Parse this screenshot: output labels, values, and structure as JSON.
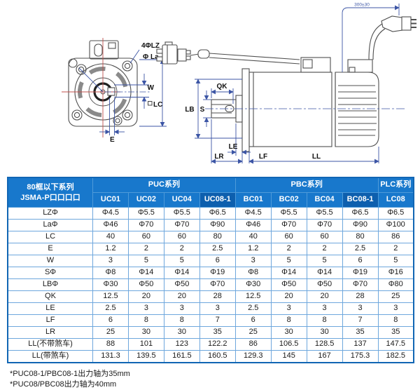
{
  "drawing": {
    "front_view": {
      "bolt_hole_label": "4ΦLZ",
      "pilot_dia_label": "Φ La",
      "key_width_label": "W",
      "frame_label": "LC",
      "key_offset_label": "E"
    },
    "side_view": {
      "key_length_label": "QK",
      "boss_dia_label": "LB",
      "shaft_dia_label": "S",
      "le_label": "LE",
      "lr_label": "LR",
      "lf_label": "LF",
      "ll_label": "LL",
      "cable_length_label": "300±30"
    }
  },
  "table": {
    "corner_header_line1": "80框以下系列",
    "corner_header_line2": "JSMA-P口口口口",
    "groups": [
      {
        "label": "PUC系列",
        "span": 4
      },
      {
        "label": "PBC系列",
        "span": 4
      },
      {
        "label": "PLC系列",
        "span": 1
      }
    ],
    "models": [
      "UC01",
      "UC02",
      "UC04",
      "UC08-1",
      "BC01",
      "BC02",
      "BC04",
      "BC08-1",
      "LC08"
    ],
    "highlight_models": [
      "UC08-1",
      "BC08-1"
    ],
    "rows": [
      {
        "label": "LZΦ",
        "values": [
          "Φ4.5",
          "Φ5.5",
          "Φ5.5",
          "Φ6.5",
          "Φ4.5",
          "Φ5.5",
          "Φ5.5",
          "Φ6.5",
          "Φ6.5"
        ]
      },
      {
        "label": "LaΦ",
        "values": [
          "Φ46",
          "Φ70",
          "Φ70",
          "Φ90",
          "Φ46",
          "Φ70",
          "Φ70",
          "Φ90",
          "Φ100"
        ]
      },
      {
        "label": "LC",
        "values": [
          "40",
          "60",
          "60",
          "80",
          "40",
          "60",
          "60",
          "80",
          "86"
        ]
      },
      {
        "label": "E",
        "values": [
          "1.2",
          "2",
          "2",
          "2.5",
          "1.2",
          "2",
          "2",
          "2.5",
          "2"
        ]
      },
      {
        "label": "W",
        "values": [
          "3",
          "5",
          "5",
          "6",
          "3",
          "5",
          "5",
          "6",
          "5"
        ]
      },
      {
        "label": "SΦ",
        "values": [
          "Φ8",
          "Φ14",
          "Φ14",
          "Φ19",
          "Φ8",
          "Φ14",
          "Φ14",
          "Φ19",
          "Φ16"
        ]
      },
      {
        "label": "LBΦ",
        "values": [
          "Φ30",
          "Φ50",
          "Φ50",
          "Φ70",
          "Φ30",
          "Φ50",
          "Φ50",
          "Φ70",
          "Φ80"
        ]
      },
      {
        "label": "QK",
        "values": [
          "12.5",
          "20",
          "20",
          "28",
          "12.5",
          "20",
          "20",
          "28",
          "25"
        ]
      },
      {
        "label": "LE",
        "values": [
          "2.5",
          "3",
          "3",
          "3",
          "2.5",
          "3",
          "3",
          "3",
          "3"
        ]
      },
      {
        "label": "LF",
        "values": [
          "6",
          "8",
          "8",
          "7",
          "6",
          "8",
          "8",
          "7",
          "8"
        ]
      },
      {
        "label": "LR",
        "values": [
          "25",
          "30",
          "30",
          "35",
          "25",
          "30",
          "30",
          "35",
          "35"
        ]
      },
      {
        "label": "LL(不带煞车)",
        "values": [
          "88",
          "101",
          "123",
          "122.2",
          "86",
          "106.5",
          "128.5",
          "137",
          "147.5"
        ]
      },
      {
        "label": "LL(带煞车)",
        "values": [
          "131.3",
          "139.5",
          "161.5",
          "160.5",
          "129.3",
          "145",
          "167",
          "175.3",
          "182.5"
        ]
      }
    ]
  },
  "footnotes": [
    "*PUC08-1/PBC08-1出力轴为35mm",
    "*PUC08/PBC08出力轴为40mm"
  ],
  "colors": {
    "header_blue": "#1878cc",
    "header_dark_blue": "#0d5fae",
    "grid_blue": "#6ea7dd",
    "outer_border_blue": "#1166b4",
    "dimension_blue": "#3c55a5",
    "centerline_red": "#c0504d",
    "line_gray": "#4f4f4f"
  }
}
